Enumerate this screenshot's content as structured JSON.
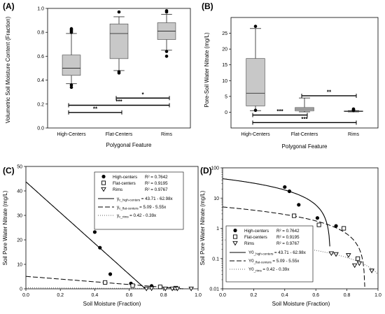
{
  "chart_data": [
    {
      "panel": "(A)",
      "type": "box",
      "ylabel": "Volumetric Soil Moisture Content (Fraction)",
      "xlabel": "Polygonal Feature",
      "ylim": [
        0.0,
        1.0
      ],
      "yticks": [
        "0.0",
        "0.2",
        "0.4",
        "0.6",
        "0.8",
        "1.0"
      ],
      "categories": [
        "High-Centers",
        "Flat-Centers",
        "Rims"
      ],
      "boxes": [
        {
          "q1": 0.44,
          "median": 0.5,
          "q3": 0.61,
          "whisker_low": 0.37,
          "whisker_high": 0.79,
          "outliers": [
            0.83,
            0.82,
            0.81,
            0.8,
            0.36,
            0.34
          ]
        },
        {
          "q1": 0.58,
          "median": 0.79,
          "q3": 0.87,
          "whisker_low": 0.48,
          "whisker_high": 0.93,
          "outliers": [
            0.97,
            0.47,
            0.46
          ]
        },
        {
          "q1": 0.74,
          "median": 0.81,
          "q3": 0.88,
          "whisker_low": 0.65,
          "whisker_high": 0.95,
          "outliers": [
            0.98,
            0.97,
            0.64,
            0.6
          ]
        }
      ],
      "significance": [
        {
          "from": 0,
          "to": 1,
          "label": "**",
          "y": 0.13
        },
        {
          "from": 0,
          "to": 2,
          "label": "***",
          "y": 0.19
        },
        {
          "from": 1,
          "to": 2,
          "label": "*",
          "y": 0.25
        }
      ]
    },
    {
      "panel": "(B)",
      "type": "box",
      "ylabel": "Pore-Soil Water Nitrate (mg/L)",
      "xlabel": "Polygonal Feature",
      "ylim": [
        -5,
        30
      ],
      "yticks": [
        "0",
        "5",
        "10",
        "15",
        "20",
        "25"
      ],
      "yticks_values": [
        0,
        5,
        10,
        15,
        20,
        25
      ],
      "categories": [
        "High-Centers",
        "Flat-Centers",
        "Rims"
      ],
      "boxes": [
        {
          "q1": 2.0,
          "median": 6.0,
          "q3": 17.0,
          "whisker_low": 0.5,
          "whisker_high": 26.5,
          "outliers": [
            27.2,
            0.6
          ]
        },
        {
          "q1": 0.4,
          "median": 1.0,
          "q3": 1.5,
          "whisker_low": 0.1,
          "whisker_high": 4.5,
          "outliers": []
        },
        {
          "q1": 0.2,
          "median": 0.3,
          "q3": 0.4,
          "whisker_low": 0.1,
          "whisker_high": 0.5,
          "outliers": [
            1.0,
            0.8,
            0.6,
            0.5
          ]
        }
      ],
      "significance": [
        {
          "from": 1,
          "to": 2,
          "label": "**",
          "y": 5.2
        },
        {
          "from": 0,
          "to": 1,
          "label": "***",
          "y": -0.9
        },
        {
          "from": 0,
          "to": 2,
          "label": "***",
          "y": -3.3
        }
      ]
    },
    {
      "panel": "(C)",
      "type": "scatter",
      "ylabel": "Soil Pore Water Nitrate (mg/L)",
      "xlabel": "Soil Moisture (Fraction)",
      "xlim": [
        0.0,
        1.0
      ],
      "ylim": [
        0,
        50
      ],
      "xticks": [
        "0.0",
        "0.2",
        "0.4",
        "0.6",
        "0.8",
        "1.0"
      ],
      "yticks": [
        "0",
        "10",
        "20",
        "30",
        "40",
        "50"
      ],
      "series": [
        {
          "name": "High-centers",
          "r2": "R² = 0.7642",
          "marker": "filled-circle",
          "points": [
            [
              0.4,
              23.2
            ],
            [
              0.43,
              16.8
            ],
            [
              0.49,
              6.0
            ],
            [
              0.61,
              2.2
            ],
            [
              0.73,
              1.2
            ]
          ]
        },
        {
          "name": "Flat-centers",
          "r2": "R² = 0.9195",
          "marker": "open-square",
          "points": [
            [
              0.46,
              2.6
            ],
            [
              0.62,
              1.3
            ],
            [
              0.78,
              0.8
            ],
            [
              0.87,
              0.3
            ]
          ]
        },
        {
          "name": "Rims",
          "r2": "R² = 0.9767",
          "marker": "open-triangle-down",
          "points": [
            [
              0.7,
              0.1
            ],
            [
              0.73,
              0.2
            ],
            [
              0.81,
              0.1
            ],
            [
              0.85,
              0.1
            ],
            [
              0.88,
              0.1
            ],
            [
              0.96,
              0.1
            ]
          ]
        }
      ],
      "fits": [
        {
          "label_main": "y",
          "label_sub": "c_high-centers",
          "eq": "= 43.71 - 62.98x",
          "style": "solid",
          "a": 43.71,
          "b": -62.98
        },
        {
          "label_main": "y",
          "label_sub": "c_flat-centers",
          "eq": "= 5.09 - 5.55x",
          "style": "dashed",
          "a": 5.09,
          "b": -5.55
        },
        {
          "label_main": "y",
          "label_sub": "c_rims",
          "eq": "= 0.42 - 0.39x",
          "style": "dotted",
          "a": 0.42,
          "b": -0.39
        }
      ],
      "legend_position": "top-right"
    },
    {
      "panel": "(D)",
      "type": "scatter",
      "yscale": "log",
      "ylabel": "Soil Pore Water Nitrate (mg/L)",
      "xlabel": "Soil Moisture (Fraction)",
      "xlim": [
        0.0,
        1.0
      ],
      "ylim": [
        0.01,
        100
      ],
      "xticks": [
        "0.0",
        "0.2",
        "0.4",
        "0.6",
        "0.8",
        "1.0"
      ],
      "yticks": [
        "0.01",
        "0.1",
        "1",
        "10",
        "100"
      ],
      "series": [
        {
          "name": "High-centers",
          "r2": "R² = 0.7642",
          "marker": "filled-circle",
          "points": [
            [
              0.4,
              23.2
            ],
            [
              0.43,
              16.8
            ],
            [
              0.49,
              6.0
            ],
            [
              0.61,
              2.2
            ],
            [
              0.73,
              1.2
            ]
          ]
        },
        {
          "name": "Flat-centers",
          "r2": "R² = 0.9195",
          "marker": "open-square",
          "points": [
            [
              0.46,
              2.6
            ],
            [
              0.62,
              1.3
            ],
            [
              0.78,
              1.0
            ],
            [
              0.87,
              0.1
            ]
          ]
        },
        {
          "name": "Rims",
          "r2": "R² = 0.9767",
          "marker": "open-triangle-down",
          "points": [
            [
              0.7,
              0.15
            ],
            [
              0.73,
              0.14
            ],
            [
              0.81,
              0.13
            ],
            [
              0.85,
              0.06
            ],
            [
              0.88,
              0.07
            ],
            [
              0.96,
              0.04
            ]
          ]
        }
      ],
      "fits": [
        {
          "label_main": "Y0",
          "label_sub": "_high-centers",
          "eq": "= 43.71 - 62.98x",
          "style": "solid",
          "a": 43.71,
          "b": -62.98
        },
        {
          "label_main": "Y0",
          "label_sub": "_flat-centers",
          "eq": "= 5.09 - 5.55x",
          "style": "dashed",
          "a": 5.09,
          "b": -5.55
        },
        {
          "label_main": "Y0",
          "label_sub": "_rims",
          "eq": "= 0.42 - 0.39x",
          "style": "dotted",
          "a": 0.42,
          "b": -0.39
        }
      ],
      "legend_position": "lower-left"
    }
  ]
}
